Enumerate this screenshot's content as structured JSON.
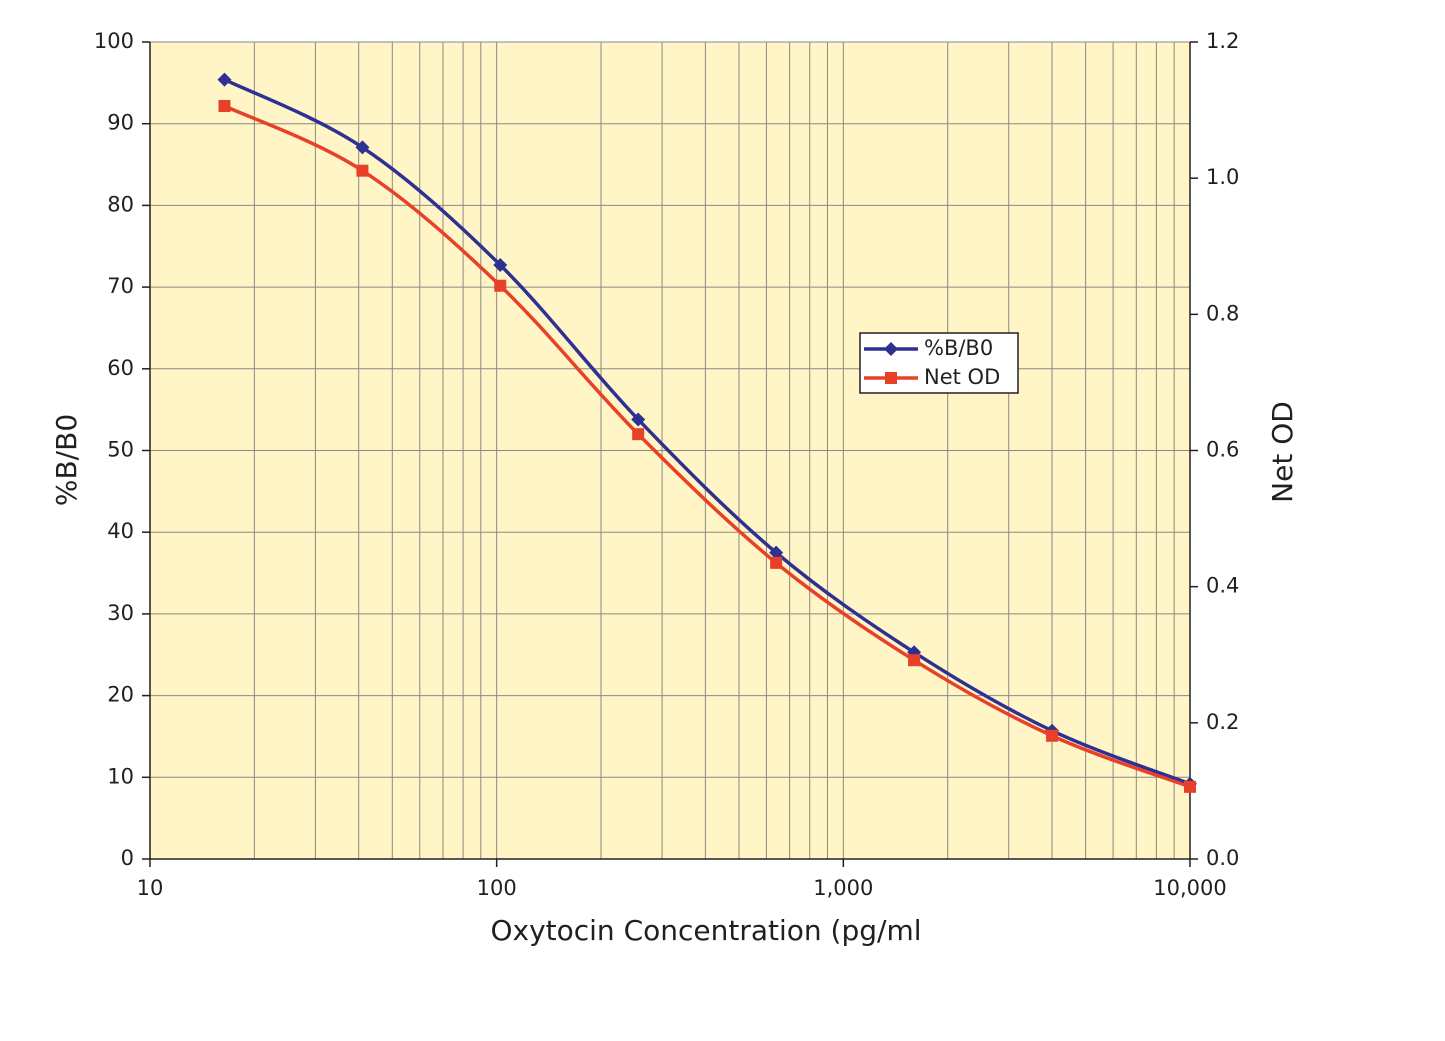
{
  "chart_data": {
    "type": "line",
    "x_label": "Oxytocin Concentration (pg/ml",
    "y_label": "%B/B0",
    "y2_label": "Net OD",
    "x": [
      16.4,
      41,
      102.4,
      256,
      640,
      1600,
      4000,
      10000
    ],
    "series": [
      {
        "name": "%B/B0",
        "color": "#2e3192",
        "marker": "diamond",
        "values": [
          95.4,
          87.1,
          72.7,
          53.8,
          37.5,
          25.3,
          15.7,
          9.2
        ]
      },
      {
        "name": "Net OD",
        "color": "#e8412a",
        "marker": "square",
        "axis": "y2",
        "values": [
          1.106,
          1.011,
          0.842,
          0.624,
          0.435,
          0.292,
          0.181,
          0.106
        ]
      }
    ],
    "xlog": true,
    "xlim": [
      10,
      10000
    ],
    "xticks": [
      10,
      100,
      {
        "value": 1000,
        "label": "1,000"
      },
      {
        "value": 10000,
        "label": "10,000"
      }
    ],
    "xminorticks": [
      20,
      30,
      40,
      50,
      60,
      70,
      80,
      90,
      200,
      300,
      400,
      500,
      600,
      700,
      800,
      900,
      2000,
      3000,
      4000,
      5000,
      6000,
      7000,
      8000,
      9000
    ],
    "ylim": [
      0,
      100
    ],
    "yticks": [
      0,
      10,
      20,
      30,
      40,
      50,
      60,
      70,
      80,
      90,
      100
    ],
    "y2lim": [
      0,
      1.2
    ],
    "y2ticks": [
      {
        "value": 0,
        "label": "0.0"
      },
      0.2,
      0.4,
      0.6,
      0.8,
      {
        "value": 1,
        "label": "1.0"
      },
      1.2
    ],
    "grid": true,
    "background": "#fff5c6",
    "legend": "right"
  }
}
